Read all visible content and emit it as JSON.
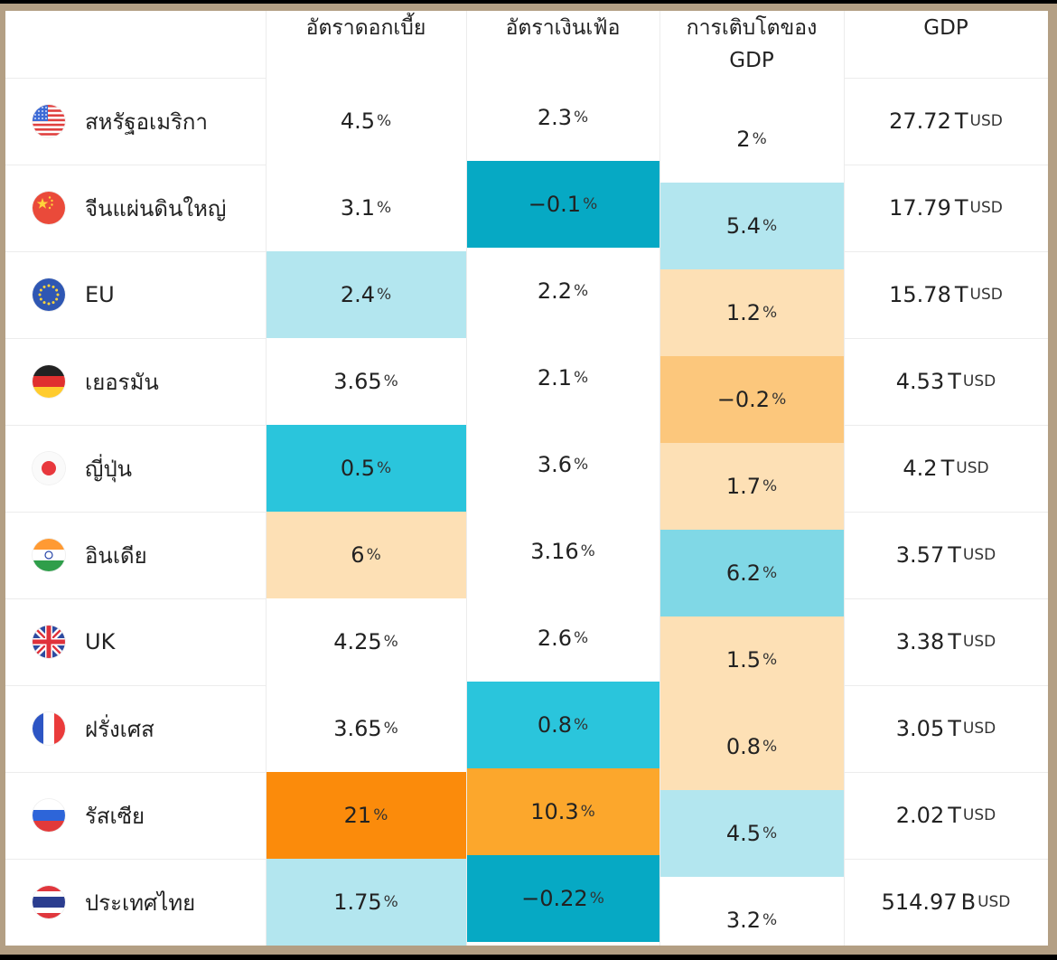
{
  "headers": {
    "interest": "อัตราดอกเบี้ย",
    "inflation": "อัตราเงินเฟ้อ",
    "growth_line1": "การเติบโตของ",
    "growth_line2": "GDP",
    "gdp": "GDP"
  },
  "pct_symbol": "%",
  "colors": {
    "white": "#ffffff",
    "light_blue": "#b3e6ef",
    "mid_blue": "#80d8e6",
    "cyan": "#2ac5dc",
    "teal": "#06a9c4",
    "light_orange": "#fde0b5",
    "mid_orange": "#fcc77c",
    "orange": "#fca72c",
    "deep_orange": "#fb8b0b"
  },
  "rows": [
    {
      "country": "สหรัฐอเมริกา",
      "flag": "us-flag-icon",
      "interest": "4.5",
      "interest_color": "white",
      "inflation": "2.3",
      "inflation_color": "white",
      "growth": "2",
      "growth_color": "white",
      "gdp": "27.72",
      "gdp_unit": "T",
      "gdp_currency": "USD"
    },
    {
      "country": "จีนแผ่นดินใหญ่",
      "flag": "cn-flag-icon",
      "interest": "3.1",
      "interest_color": "white",
      "inflation": "−0.1",
      "inflation_color": "teal",
      "growth": "5.4",
      "growth_color": "light_blue",
      "gdp": "17.79",
      "gdp_unit": "T",
      "gdp_currency": "USD"
    },
    {
      "country": "EU",
      "flag": "eu-flag-icon",
      "interest": "2.4",
      "interest_color": "light_blue",
      "inflation": "2.2",
      "inflation_color": "white",
      "growth": "1.2",
      "growth_color": "light_orange",
      "gdp": "15.78",
      "gdp_unit": "T",
      "gdp_currency": "USD"
    },
    {
      "country": "เยอรมัน",
      "flag": "de-flag-icon",
      "interest": "3.65",
      "interest_color": "white",
      "inflation": "2.1",
      "inflation_color": "white",
      "growth": "−0.2",
      "growth_color": "mid_orange",
      "gdp": "4.53",
      "gdp_unit": "T",
      "gdp_currency": "USD"
    },
    {
      "country": "ญี่ปุ่น",
      "flag": "jp-flag-icon",
      "interest": "0.5",
      "interest_color": "cyan",
      "inflation": "3.6",
      "inflation_color": "white",
      "growth": "1.7",
      "growth_color": "light_orange",
      "gdp": "4.2",
      "gdp_unit": "T",
      "gdp_currency": "USD"
    },
    {
      "country": "อินเดีย",
      "flag": "in-flag-icon",
      "interest": "6",
      "interest_color": "light_orange",
      "inflation": "3.16",
      "inflation_color": "white",
      "growth": "6.2",
      "growth_color": "mid_blue",
      "gdp": "3.57",
      "gdp_unit": "T",
      "gdp_currency": "USD"
    },
    {
      "country": "UK",
      "flag": "uk-flag-icon",
      "interest": "4.25",
      "interest_color": "white",
      "inflation": "2.6",
      "inflation_color": "white",
      "growth": "1.5",
      "growth_color": "light_orange",
      "gdp": "3.38",
      "gdp_unit": "T",
      "gdp_currency": "USD"
    },
    {
      "country": "ฝรั่งเศส",
      "flag": "fr-flag-icon",
      "interest": "3.65",
      "interest_color": "white",
      "inflation": "0.8",
      "inflation_color": "cyan",
      "growth": "0.8",
      "growth_color": "light_orange",
      "gdp": "3.05",
      "gdp_unit": "T",
      "gdp_currency": "USD"
    },
    {
      "country": "รัสเซีย",
      "flag": "ru-flag-icon",
      "interest": "21",
      "interest_color": "deep_orange",
      "inflation": "10.3",
      "inflation_color": "orange",
      "growth": "4.5",
      "growth_color": "light_blue",
      "gdp": "2.02",
      "gdp_unit": "T",
      "gdp_currency": "USD"
    },
    {
      "country": "ประเทศไทย",
      "flag": "th-flag-icon",
      "interest": "1.75",
      "interest_color": "light_blue",
      "inflation": "−0.22",
      "inflation_color": "teal",
      "growth": "3.2",
      "growth_color": "white",
      "gdp": "514.97",
      "gdp_unit": "B",
      "gdp_currency": "USD"
    }
  ]
}
